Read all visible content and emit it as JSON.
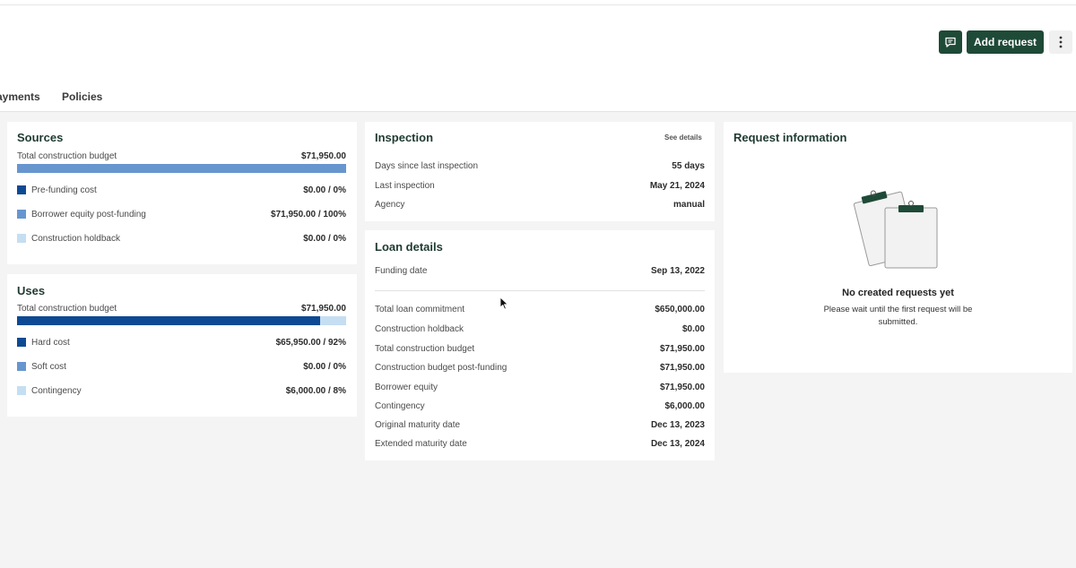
{
  "header": {
    "add_request_label": "Add request",
    "chat_icon": "message-icon",
    "more_icon": "more-vertical-icon"
  },
  "tabs": [
    {
      "label": "ayments"
    },
    {
      "label": "Policies"
    }
  ],
  "sources": {
    "title": "Sources",
    "total_label": "Total construction budget",
    "total_value": "$71,950.00",
    "bar_fill_fraction": 1.0,
    "items": [
      {
        "label": "Pre-funding cost",
        "value": "$0.00 / 0%",
        "color": "#0d4a93"
      },
      {
        "label": "Borrower equity post-funding",
        "value": "$71,950.00 / 100%",
        "color": "#6796cf"
      },
      {
        "label": "Construction holdback",
        "value": "$0.00 / 0%",
        "color": "#c5def2"
      }
    ]
  },
  "uses": {
    "title": "Uses",
    "total_label": "Total construction budget",
    "total_value": "$71,950.00",
    "bar_fill_fraction": 0.92,
    "items": [
      {
        "label": "Hard cost",
        "value": "$65,950.00 / 92%",
        "color": "#0d4a93"
      },
      {
        "label": "Soft cost",
        "value": "$0.00 / 0%",
        "color": "#6796cf"
      },
      {
        "label": "Contingency",
        "value": "$6,000.00 / 8%",
        "color": "#c5def2"
      }
    ]
  },
  "inspection": {
    "title": "Inspection",
    "see_details": "See details",
    "rows": [
      {
        "label": "Days since last inspection",
        "value": "55 days"
      },
      {
        "label": "Last inspection",
        "value": "May 21, 2024"
      },
      {
        "label": "Agency",
        "value": "manual"
      }
    ]
  },
  "loan": {
    "title": "Loan details",
    "funding_label": "Funding date",
    "funding_value": "Sep 13, 2022",
    "rows": [
      {
        "label": "Total loan commitment",
        "value": "$650,000.00"
      },
      {
        "label": "Construction holdback",
        "value": "$0.00"
      },
      {
        "label": "Total construction budget",
        "value": "$71,950.00"
      },
      {
        "label": "Construction budget post-funding",
        "value": "$71,950.00"
      },
      {
        "label": "Borrower equity",
        "value": "$71,950.00"
      },
      {
        "label": "Contingency",
        "value": "$6,000.00"
      },
      {
        "label": "Original maturity date",
        "value": "Dec 13, 2023"
      },
      {
        "label": "Extended maturity date",
        "value": "Dec 13, 2024"
      }
    ]
  },
  "request": {
    "title": "Request information",
    "empty_title": "No created requests yet",
    "empty_subtitle": "Please wait until the first request will be submitted.",
    "illustration_icon": "clipboard-icon"
  }
}
